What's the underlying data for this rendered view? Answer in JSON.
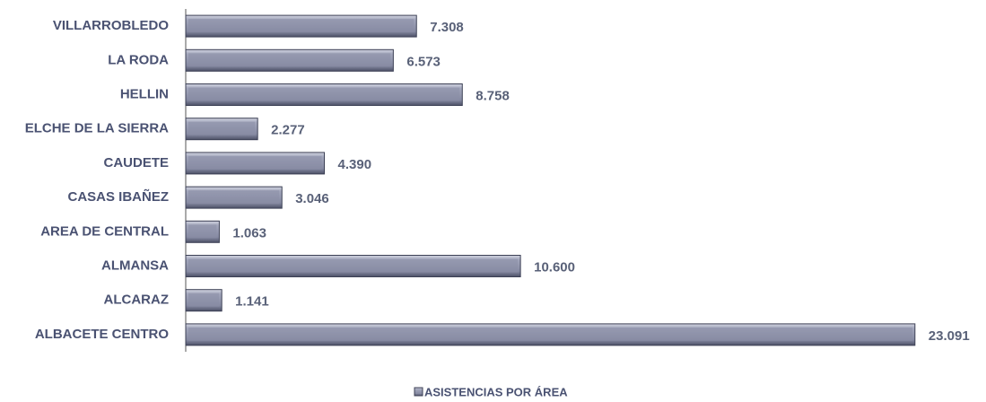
{
  "chart_data": {
    "type": "hbar",
    "categories": [
      "VILLARROBLEDO",
      "LA RODA",
      "HELLIN",
      "ELCHE DE LA SIERRA",
      "CAUDETE",
      "CASAS IBAÑEZ",
      "AREA DE CENTRAL",
      "ALMANSA",
      "ALCARAZ",
      "ALBACETE CENTRO"
    ],
    "series": [
      {
        "name": "ASISTENCIAS POR ÁREA",
        "color": "#8a8ea6",
        "values": [
          7308,
          6573,
          8758,
          2277,
          4390,
          3046,
          1063,
          10600,
          1141,
          23091
        ],
        "value_labels": [
          "7.308",
          "6.573",
          "8.758",
          "2.277",
          "4.390",
          "3.046",
          "1.063",
          "10.600",
          "1.141",
          "23.091"
        ]
      }
    ],
    "xlim": [
      0,
      25000
    ],
    "legend": "bottom"
  }
}
